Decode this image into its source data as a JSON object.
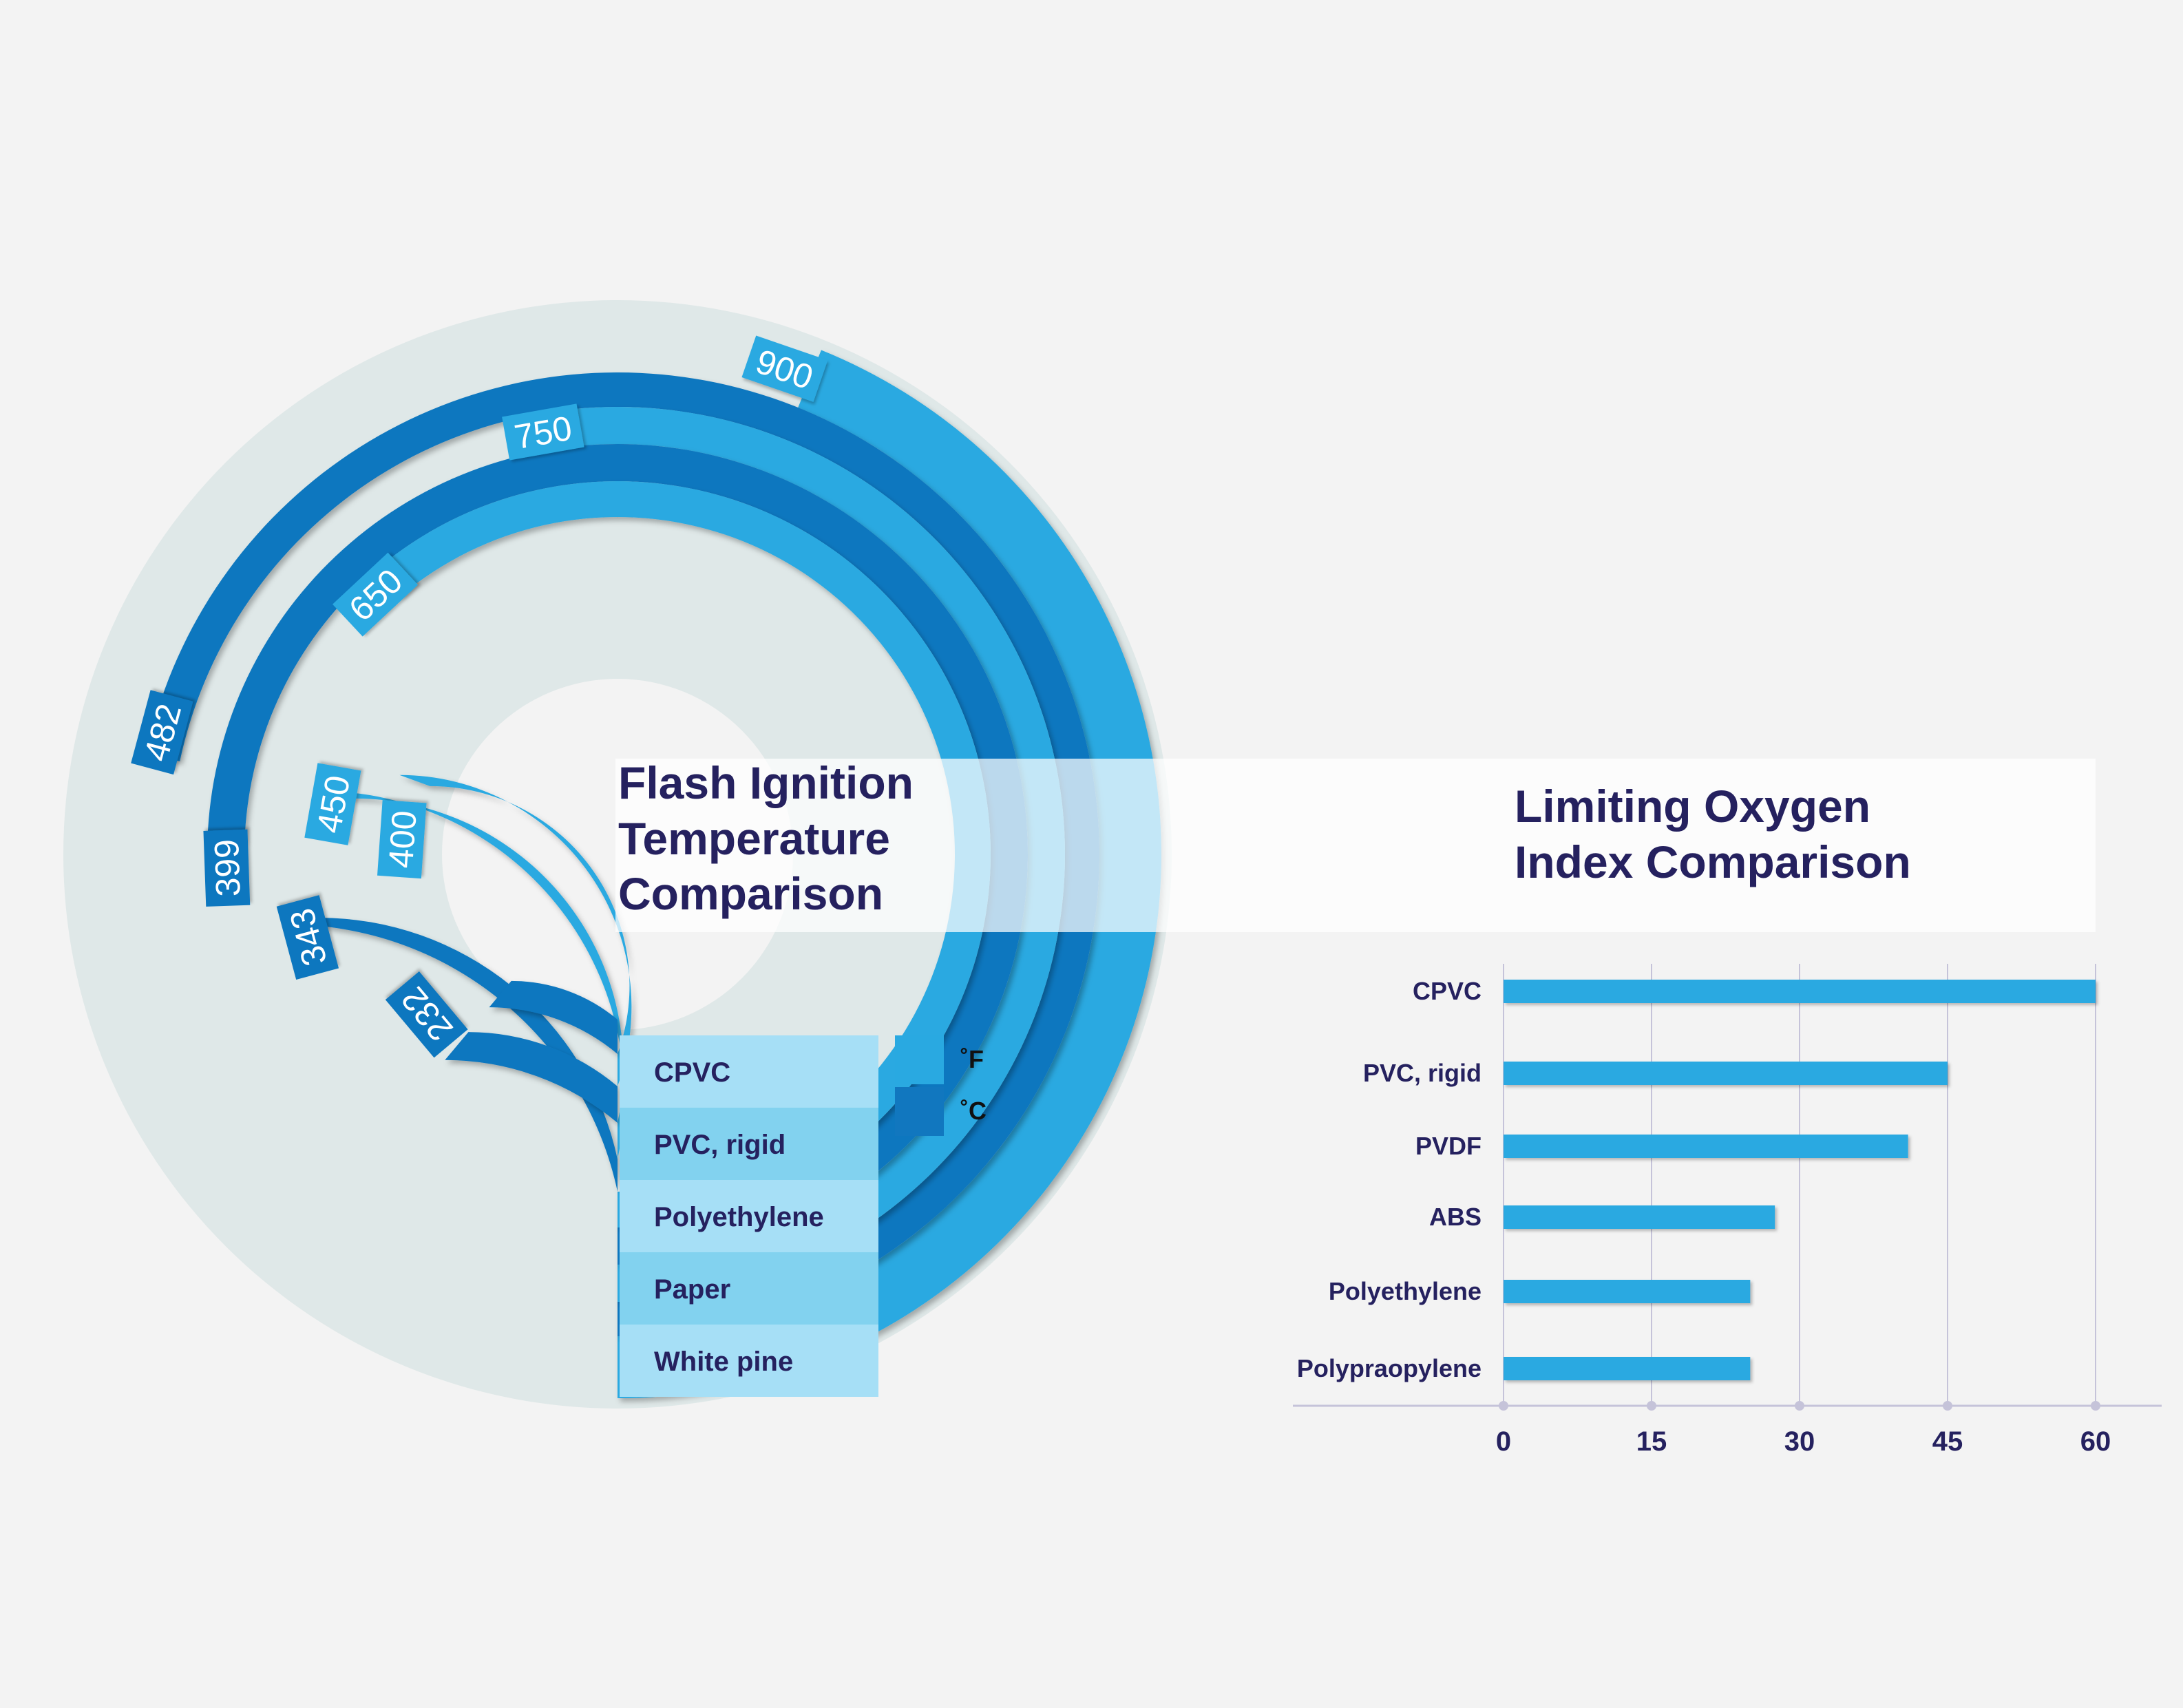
{
  "colors": {
    "background": "#f3f3f3",
    "fahrenheit": "#29a9e1",
    "celsius": "#1177bf",
    "disk": "#dfe8e8",
    "row_light": "#a6dff6",
    "row_mid": "#82d2ef",
    "title_text": "#25215f",
    "axis": "#c5c3d9"
  },
  "left_chart": {
    "title_lines": [
      "Flash Ignition",
      "Temperature",
      "Comparison"
    ],
    "legend": [
      {
        "label": "˚F",
        "color": "#29a9e1"
      },
      {
        "label": "˚C",
        "color": "#1177bf"
      }
    ]
  },
  "right_chart": {
    "title_lines": [
      "Limiting Oxygen",
      "Index Comparison"
    ]
  },
  "chart_data": [
    {
      "type": "radial bar",
      "title": "Flash Ignition Temperature Comparison",
      "categories": [
        "CPVC",
        "PVC, rigid",
        "Polyethylene",
        "Paper",
        "White pine"
      ],
      "series": [
        {
          "name": "˚F",
          "values": [
            null,
            null,
            650,
            750,
            900
          ]
        },
        {
          "name": "˚C",
          "values": [
            null,
            null,
            343,
            399,
            482
          ]
        }
      ],
      "value_labels": [
        {
          "category": "CPVC",
          "f": "400",
          "c": "232"
        },
        {
          "category": "PVC, rigid",
          "f": "450",
          "c": ""
        },
        {
          "category": "Polyethylene",
          "f": "650",
          "c": "343"
        },
        {
          "category": "Paper",
          "f": "750",
          "c": "399"
        },
        {
          "category": "White pine",
          "f": "900",
          "c": "482"
        }
      ],
      "legend_position": "right"
    },
    {
      "type": "bar",
      "orientation": "horizontal",
      "title": "Limiting Oxygen Index Comparison",
      "categories": [
        "CPVC",
        "PVC, rigid",
        "PVDF",
        "ABS",
        "Polyethylene",
        "Polypraopylene"
      ],
      "values": [
        60,
        45,
        41,
        27.5,
        25,
        25
      ],
      "xlim": [
        0,
        60
      ],
      "xticks": [
        "0",
        "15",
        "30",
        "45",
        "60"
      ],
      "grid": true
    }
  ]
}
